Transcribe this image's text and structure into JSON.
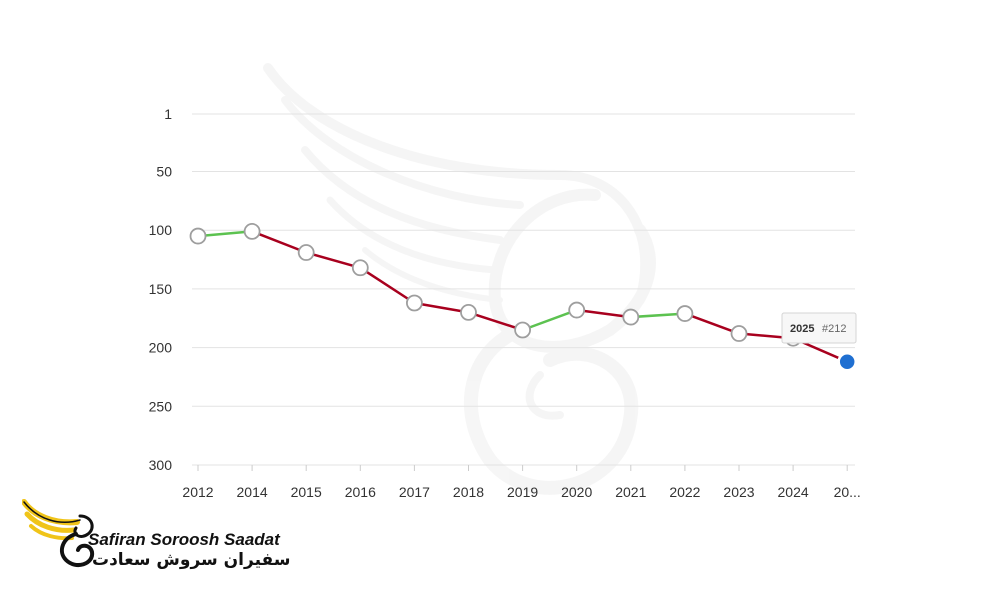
{
  "chart_data": {
    "type": "line",
    "title": "",
    "xlabel": "",
    "ylabel": "",
    "y_reversed": true,
    "ylim": [
      1,
      300
    ],
    "y_ticks": [
      "1",
      "50",
      "100",
      "150",
      "200",
      "250",
      "300"
    ],
    "x_tick_labels": [
      "2012",
      "2014",
      "2015",
      "2016",
      "2017",
      "2018",
      "2019",
      "2020",
      "2021",
      "2022",
      "2023",
      "2024",
      "20..."
    ],
    "points": [
      {
        "year": "2012",
        "rank": 105
      },
      {
        "year": "2014",
        "rank": 101
      },
      {
        "year": "2015",
        "rank": 119
      },
      {
        "year": "2016",
        "rank": 132
      },
      {
        "year": "2017",
        "rank": 162
      },
      {
        "year": "2018",
        "rank": 170
      },
      {
        "year": "2019",
        "rank": 185
      },
      {
        "year": "2020",
        "rank": 168
      },
      {
        "year": "2021",
        "rank": 174
      },
      {
        "year": "2022",
        "rank": 171
      },
      {
        "year": "2023",
        "rank": 188
      },
      {
        "year": "2024",
        "rank": 192
      },
      {
        "year": "2025",
        "rank": 212
      }
    ],
    "grid": true,
    "colors": {
      "improving": "#5cc250",
      "declining": "#a8001e",
      "point_fill": "#ffffff",
      "point_stroke": "#9e9e9e",
      "highlight": "#1f6fd1",
      "grid": "#e3e3e3"
    },
    "highlighted_point": 12,
    "tooltip": {
      "year": "2025",
      "rank": "#212"
    }
  },
  "logo": {
    "name": "Safiran Soroosh Saadat",
    "name_fa": "سفیران سروش سعادت",
    "brand_colors": {
      "wing": "#f0c419",
      "ink": "#111111"
    },
    "icon": "winged-s-logo-icon"
  },
  "watermark": {
    "icon": "winged-s-watermark-icon"
  }
}
